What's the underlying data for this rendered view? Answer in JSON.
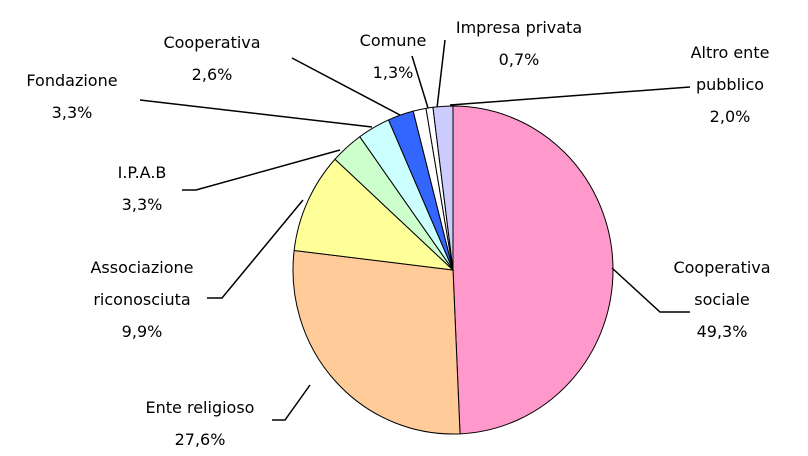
{
  "chart_data": {
    "type": "pie",
    "categories": [
      "Cooperativa sociale",
      "Ente religioso",
      "Associazione riconosciuta",
      "I.P.A.B",
      "Fondazione",
      "Cooperativa",
      "Comune",
      "Impresa privata",
      "Altro ente pubblico"
    ],
    "values": [
      49.3,
      27.6,
      9.9,
      3.3,
      3.3,
      2.6,
      1.3,
      0.7,
      2.0
    ],
    "value_labels": [
      "49,3%",
      "27,6%",
      "9,9%",
      "3,3%",
      "3,3%",
      "2,6%",
      "1,3%",
      "0,7%",
      "2,0%"
    ],
    "colors": [
      "#ff99cc",
      "#ffcc99",
      "#ffff99",
      "#ccffcc",
      "#ccffff",
      "#3366ff",
      "#ffffff",
      "#ffffff",
      "#ccccff"
    ]
  }
}
